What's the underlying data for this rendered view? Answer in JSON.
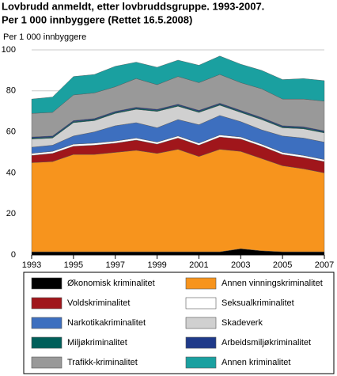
{
  "chart_data": {
    "type": "stacked-area",
    "title": "Lovbrudd anmeldt, etter lovbruddsgruppe. 1993-2007.",
    "subtitle": "Per 1 000 innbyggere (Rettet 16.5.2008)",
    "y_label": "Per 1 000 innbyggere",
    "x": [
      1993,
      1994,
      1995,
      1996,
      1997,
      1998,
      1999,
      2000,
      2001,
      2002,
      2003,
      2004,
      2005,
      2006,
      2007
    ],
    "xlim": [
      1993,
      2007
    ],
    "xticks": [
      1993,
      1995,
      1997,
      1999,
      2001,
      2003,
      2005,
      2007
    ],
    "ylim": [
      0,
      100
    ],
    "yticks": [
      0,
      20,
      40,
      60,
      80,
      100
    ],
    "grid": true,
    "series": [
      {
        "name": "Økonomisk kriminalitet",
        "color": "#000000",
        "values": [
          1.5,
          1.5,
          1.5,
          1.5,
          1.5,
          1.5,
          1.5,
          1.5,
          1.5,
          1.5,
          3,
          2,
          1.5,
          1.5,
          1.5
        ]
      },
      {
        "name": "Annen vinningskriminalitet",
        "color": "#f7941d",
        "values": [
          43.5,
          44,
          47.5,
          47.5,
          48.5,
          49.5,
          48,
          50,
          46.5,
          50,
          47.5,
          45,
          42,
          40.5,
          38.5
        ]
      },
      {
        "name": "Voldskriminalitet",
        "color": "#a0161b",
        "values": [
          3.5,
          4,
          4,
          4.5,
          4.5,
          5,
          4.5,
          5.5,
          5.5,
          6,
          6,
          6,
          5.5,
          5.5,
          5.5
        ]
      },
      {
        "name": "Seksualkriminalitet",
        "color": "#ffffff",
        "values": [
          1,
          1,
          1,
          1,
          1,
          1,
          1,
          1,
          1,
          1,
          1,
          1,
          1,
          1,
          1
        ]
      },
      {
        "name": "Narkotikakriminalitet",
        "color": "#3d6fbf",
        "values": [
          3,
          3,
          4,
          5.5,
          7.5,
          7.5,
          7,
          8,
          9,
          9.5,
          7.5,
          7,
          8,
          8.5,
          8.5
        ]
      },
      {
        "name": "Skadeverk",
        "color": "#d0d0d0",
        "values": [
          4,
          3.5,
          6.5,
          5.5,
          6,
          6.5,
          8,
          6.5,
          6,
          5,
          4.5,
          5,
          4,
          4.5,
          4.5
        ]
      },
      {
        "name": "Miljøkriminalitet",
        "color": "#005f5a",
        "values": [
          0.5,
          0.5,
          0.5,
          0.5,
          0.5,
          0.5,
          0.5,
          0.5,
          0.5,
          0.5,
          0.5,
          0.5,
          0.5,
          0.5,
          0.5
        ]
      },
      {
        "name": "Arbeidsmiljøkriminalitet",
        "color": "#1f3a8a",
        "values": [
          0.5,
          0.5,
          0.5,
          0.5,
          0.5,
          0.5,
          0.5,
          0.5,
          0.5,
          0.5,
          0.5,
          0.5,
          0.5,
          0.5,
          0.5
        ]
      },
      {
        "name": "Trafikk-kriminalitet",
        "color": "#999999",
        "values": [
          11.5,
          11.5,
          12.5,
          12.5,
          12,
          14,
          12,
          13.5,
          13.5,
          14,
          13.5,
          14,
          13,
          13.5,
          14.5
        ]
      },
      {
        "name": "Annen kriminalitet",
        "color": "#1aa0a0",
        "values": [
          7,
          7.5,
          9,
          9,
          10,
          8,
          8.5,
          8,
          8.5,
          9,
          9,
          9,
          9.5,
          10,
          10
        ]
      }
    ]
  }
}
